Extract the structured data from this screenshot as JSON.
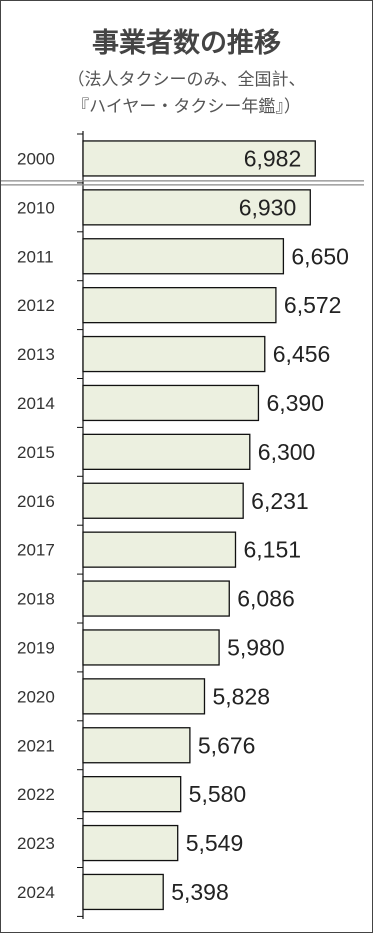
{
  "chart_data": {
    "type": "bar",
    "orientation": "horizontal",
    "title": "事業者数の推移",
    "subtitle_lines": [
      "（法人タクシーのみ、全国計、",
      "『ハイヤー・タクシー年鑑』）"
    ],
    "categories": [
      "2000",
      "2010",
      "2011",
      "2012",
      "2013",
      "2014",
      "2015",
      "2016",
      "2017",
      "2018",
      "2019",
      "2020",
      "2021",
      "2022",
      "2023",
      "2024"
    ],
    "values": [
      6982,
      6930,
      6650,
      6572,
      6456,
      6390,
      6300,
      6231,
      6151,
      6086,
      5980,
      5828,
      5676,
      5580,
      5549,
      5398
    ],
    "value_labels": [
      "6,982",
      "6,930",
      "6,650",
      "6,572",
      "6,456",
      "6,390",
      "6,300",
      "6,231",
      "6,151",
      "6,086",
      "5,980",
      "5,828",
      "5,676",
      "5,580",
      "5,549",
      "5,398"
    ],
    "axis_break_after": "2000",
    "xlim": [
      5000,
      7000
    ],
    "grid": false,
    "bar_fill": "#ecf0e0",
    "bar_stroke": "#111111"
  }
}
